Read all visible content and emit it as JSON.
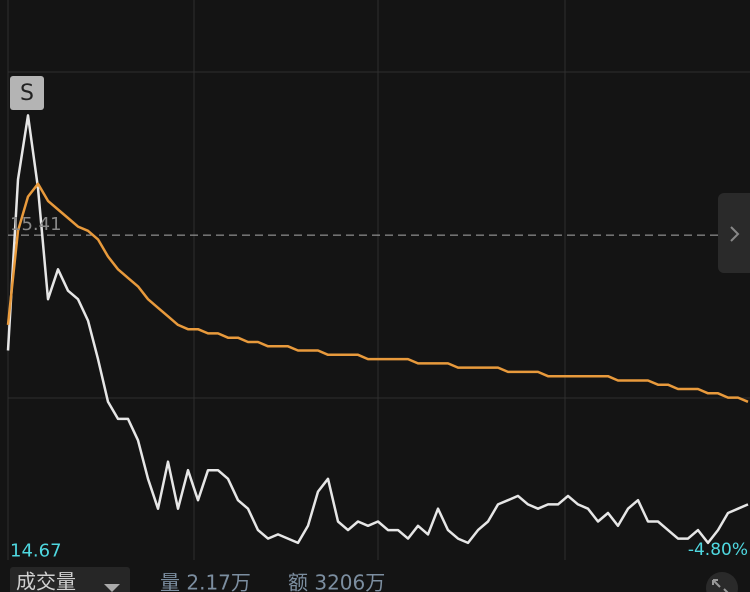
{
  "chart_data": {
    "type": "line",
    "marker": "S",
    "change_label": "-4.80%",
    "ylim": [
      14.65,
      15.96
    ],
    "yticks": [
      14.67,
      15.41
    ],
    "reference_line": 15.41,
    "series": [
      {
        "name": null,
        "color": "#e6e6e6",
        "values": [
          15.14,
          15.54,
          15.69,
          15.52,
          15.26,
          15.33,
          15.28,
          15.26,
          15.21,
          15.12,
          15.02,
          14.98,
          14.98,
          14.93,
          14.84,
          14.77,
          14.88,
          14.77,
          14.86,
          14.79,
          14.86,
          14.86,
          14.84,
          14.79,
          14.77,
          14.72,
          14.7,
          14.71,
          14.7,
          14.69,
          14.73,
          14.81,
          14.84,
          14.74,
          14.72,
          14.74,
          14.73,
          14.74,
          14.72,
          14.72,
          14.7,
          14.73,
          14.71,
          14.77,
          14.72,
          14.7,
          14.69,
          14.72,
          14.74,
          14.78,
          14.79,
          14.8,
          14.78,
          14.77,
          14.78,
          14.78,
          14.8,
          14.78,
          14.77,
          14.74,
          14.76,
          14.73,
          14.77,
          14.79,
          14.74,
          14.74,
          14.72,
          14.7,
          14.7,
          14.72,
          14.69,
          14.72,
          14.76,
          14.77,
          14.78
        ]
      },
      {
        "name": null,
        "color": "#e89a3c",
        "values": [
          15.2,
          15.42,
          15.5,
          15.53,
          15.49,
          15.47,
          15.45,
          15.43,
          15.42,
          15.4,
          15.36,
          15.33,
          15.31,
          15.29,
          15.26,
          15.24,
          15.22,
          15.2,
          15.19,
          15.19,
          15.18,
          15.18,
          15.17,
          15.17,
          15.16,
          15.16,
          15.15,
          15.15,
          15.15,
          15.14,
          15.14,
          15.14,
          15.13,
          15.13,
          15.13,
          15.13,
          15.12,
          15.12,
          15.12,
          15.12,
          15.12,
          15.11,
          15.11,
          15.11,
          15.11,
          15.1,
          15.1,
          15.1,
          15.1,
          15.1,
          15.09,
          15.09,
          15.09,
          15.09,
          15.08,
          15.08,
          15.08,
          15.08,
          15.08,
          15.08,
          15.08,
          15.07,
          15.07,
          15.07,
          15.07,
          15.06,
          15.06,
          15.05,
          15.05,
          15.05,
          15.04,
          15.04,
          15.03,
          15.03,
          15.02
        ]
      }
    ]
  },
  "footer": {
    "volume_tab": "成交量",
    "volume": "量 2.17万",
    "amount": "额 3206万"
  }
}
